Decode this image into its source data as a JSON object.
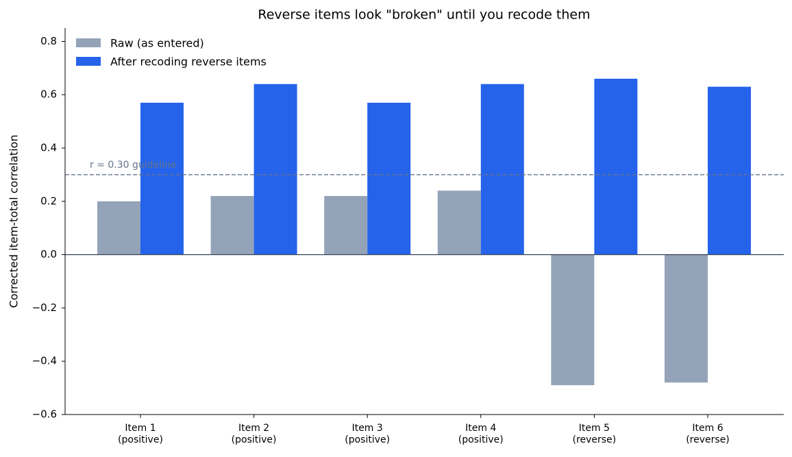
{
  "chart_data": {
    "type": "bar",
    "title": "Reverse items look \"broken\" until you recode them",
    "y_label": "Corrected item-total correlation",
    "categories": [
      "Item 1\n(positive)",
      "Item 2\n(positive)",
      "Item 3\n(positive)",
      "Item 4\n(positive)",
      "Item 5\n(reverse)",
      "Item 6\n(reverse)"
    ],
    "series": [
      {
        "name": "Raw (as entered)",
        "color": "#94a3b8",
        "values": [
          0.2,
          0.22,
          0.22,
          0.24,
          -0.49,
          -0.48
        ]
      },
      {
        "name": "After recoding reverse items",
        "color": "#2563eb",
        "values": [
          0.57,
          0.64,
          0.57,
          0.64,
          0.66,
          0.63
        ]
      }
    ],
    "ylim": [
      -0.6,
      0.85
    ],
    "yticks": [
      {
        "value": -0.6,
        "label": "−0.6"
      },
      {
        "value": -0.4,
        "label": "−0.4"
      },
      {
        "value": -0.2,
        "label": "−0.2"
      },
      {
        "value": 0,
        "label": "0.0"
      },
      0.2,
      0.4,
      0.6,
      0.8
    ],
    "hline": {
      "value": 0.3,
      "label": "r = 0.30 guideline",
      "color": "#64748b"
    },
    "legend": "upper left",
    "grid": false
  }
}
